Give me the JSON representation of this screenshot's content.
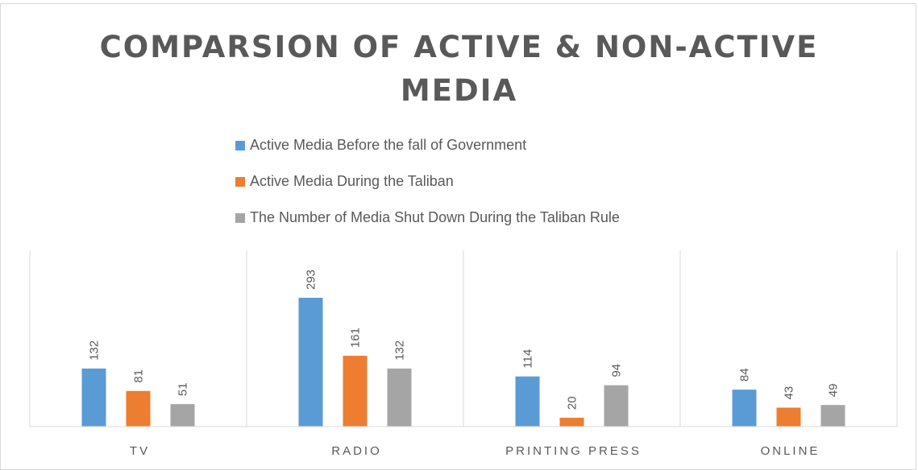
{
  "chart_data": {
    "type": "bar",
    "title": "COMPARSION OF ACTIVE & NON-ACTIVE MEDIA",
    "categories": [
      "TV",
      "RADIO",
      "PRINTING PRESS",
      "ONLINE"
    ],
    "series": [
      {
        "name": "Active Media Before the fall of Government",
        "values": [
          132,
          293,
          114,
          84
        ],
        "color": "#5b9bd5"
      },
      {
        "name": "Active Media During the Taliban",
        "values": [
          81,
          161,
          20,
          43
        ],
        "color": "#ed7d31"
      },
      {
        "name": "The Number of Media Shut Down During the Taliban Rule",
        "values": [
          51,
          132,
          94,
          49
        ],
        "color": "#a5a5a5"
      }
    ],
    "ylim": [
      0,
      293
    ],
    "grid": false,
    "legend_position": "top",
    "data_labels": "rotated"
  }
}
